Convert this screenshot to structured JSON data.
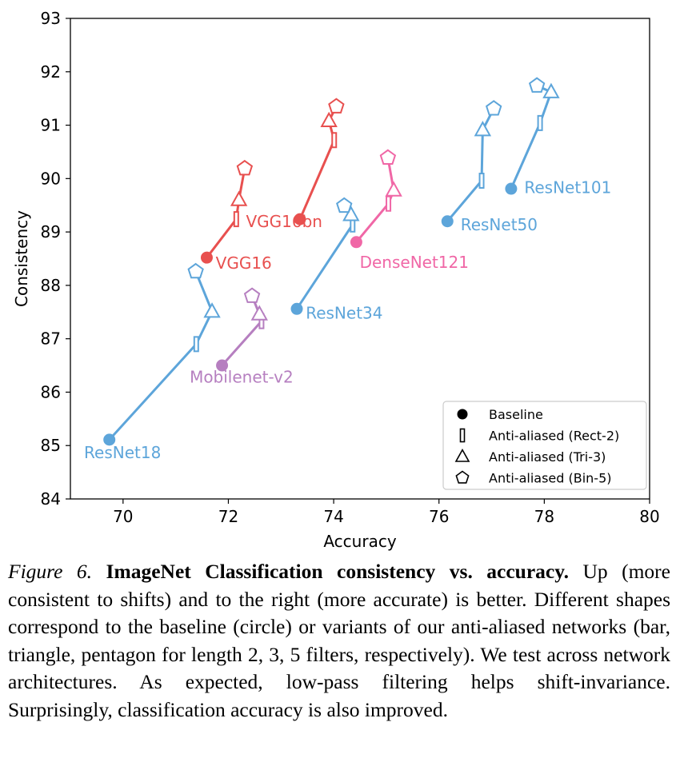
{
  "chart_data": {
    "type": "scatter",
    "xlabel": "Accuracy",
    "ylabel": "Consistency",
    "xlim": [
      69,
      80
    ],
    "ylim": [
      84,
      93
    ],
    "xticks": [
      70,
      72,
      74,
      76,
      78,
      80
    ],
    "yticks": [
      84,
      85,
      86,
      87,
      88,
      89,
      90,
      91,
      92,
      93
    ],
    "grid": false,
    "legend_position": "bottom-right",
    "legend": [
      {
        "marker": "circle",
        "label": "Baseline"
      },
      {
        "marker": "bar",
        "label": "Anti-aliased (Rect-2)"
      },
      {
        "marker": "triangle",
        "label": "Anti-aliased (Tri-3)"
      },
      {
        "marker": "pentagon",
        "label": "Anti-aliased (Bin-5)"
      }
    ],
    "series": [
      {
        "name": "ResNet18",
        "color": "#5da5da",
        "label_dx": 0.25,
        "label_dy": -0.35,
        "points": {
          "baseline": [
            69.74,
            85.11
          ],
          "rect2": [
            71.39,
            86.9
          ],
          "tri3": [
            71.69,
            87.51
          ],
          "bin5": [
            71.38,
            88.26
          ]
        }
      },
      {
        "name": "VGG16",
        "color": "#e8504f",
        "label_dx": 0.17,
        "label_dy": -0.21,
        "points": {
          "baseline": [
            71.59,
            88.52
          ],
          "rect2": [
            72.15,
            89.24
          ],
          "tri3": [
            72.2,
            89.6
          ],
          "bin5": [
            72.31,
            90.19
          ]
        }
      },
      {
        "name": "Mobilenet-v2",
        "color": "#b67fc0",
        "label_dx": 0.17,
        "label_dy": -0.32,
        "points": {
          "baseline": [
            71.88,
            86.5
          ],
          "rect2": [
            72.63,
            87.33
          ],
          "tri3": [
            72.59,
            87.46
          ],
          "bin5": [
            72.45,
            87.8
          ]
        }
      },
      {
        "name": "VGG16bn",
        "color": "#e8504f",
        "label_dx": -0.05,
        "label_dy": -0.15,
        "points": {
          "baseline": [
            73.36,
            89.24
          ],
          "rect2": [
            74.01,
            90.72
          ],
          "tri3": [
            73.91,
            91.08
          ],
          "bin5": [
            74.05,
            91.35
          ]
        }
      },
      {
        "name": "ResNet34",
        "color": "#5da5da",
        "label_dx": 0.17,
        "label_dy": -0.18,
        "points": {
          "baseline": [
            73.3,
            87.56
          ],
          "rect2": [
            74.36,
            89.14
          ],
          "tri3": [
            74.33,
            89.32
          ],
          "bin5": [
            74.2,
            89.49
          ]
        }
      },
      {
        "name": "DenseNet121",
        "color": "#f067a6",
        "label_dx": -0.05,
        "label_dy": -0.48,
        "points": {
          "baseline": [
            74.43,
            88.81
          ],
          "rect2": [
            75.04,
            89.53
          ],
          "tri3": [
            75.14,
            89.78
          ],
          "bin5": [
            75.03,
            90.39
          ]
        }
      },
      {
        "name": "ResNet50",
        "color": "#5da5da",
        "label_dx": 0.25,
        "label_dy": -0.17,
        "points": {
          "baseline": [
            76.16,
            89.2
          ],
          "rect2": [
            76.81,
            89.96
          ],
          "tri3": [
            76.83,
            90.91
          ],
          "bin5": [
            77.04,
            91.31
          ]
        }
      },
      {
        "name": "ResNet101",
        "color": "#5da5da",
        "label_dx": 0.25,
        "label_dy": -0.08,
        "points": {
          "baseline": [
            77.37,
            89.81
          ],
          "rect2": [
            77.92,
            91.04
          ],
          "tri3": [
            78.13,
            91.62
          ],
          "bin5": [
            77.86,
            91.74
          ]
        }
      }
    ]
  },
  "caption": {
    "figure_label": "Figure 6.",
    "title": "ImageNet Classification consistency vs. accuracy.",
    "body": "Up (more consistent to shifts) and to the right (more accurate) is better. Different shapes correspond to the baseline (circle) or variants of our anti-aliased networks (bar, triangle, pentagon for length 2, 3, 5 filters, respectively). We test across network architectures. As expected, low-pass filtering helps shift-invariance. Surprisingly, classification accuracy is also improved."
  }
}
